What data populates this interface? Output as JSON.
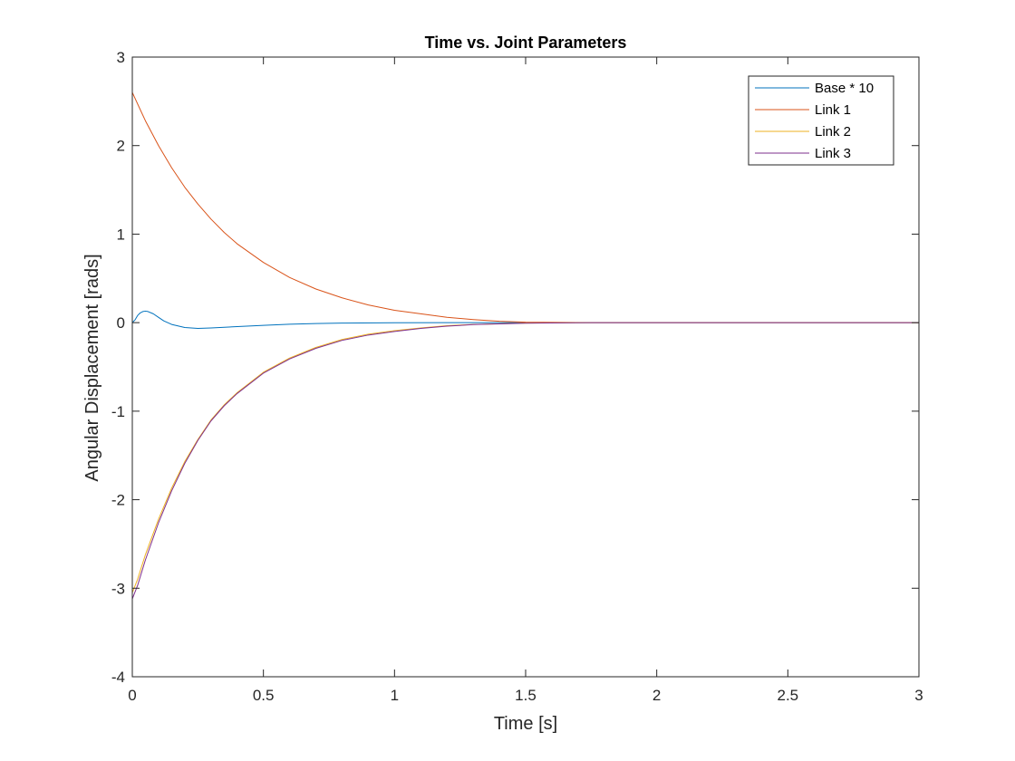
{
  "chart_data": {
    "type": "line",
    "title": "Time vs. Joint Parameters",
    "xlabel": "Time [s]",
    "ylabel": "Angular Displacement [rads]",
    "xlim": [
      0,
      3
    ],
    "ylim": [
      -4,
      3
    ],
    "xticks": [
      0,
      0.5,
      1,
      1.5,
      2,
      2.5,
      3
    ],
    "xtick_labels": [
      "0",
      "0.5",
      "1",
      "1.5",
      "2",
      "2.5",
      "3"
    ],
    "yticks": [
      -4,
      -3,
      -2,
      -1,
      0,
      1,
      2,
      3
    ],
    "ytick_labels": [
      "-4",
      "-3",
      "-2",
      "-1",
      "0",
      "1",
      "2",
      "3"
    ],
    "grid": false,
    "legend_position": "top-right",
    "series": [
      {
        "name": "Base * 10",
        "color": "#0072BD",
        "points": [
          [
            0,
            0
          ],
          [
            0.01,
            0.03
          ],
          [
            0.02,
            0.08
          ],
          [
            0.03,
            0.11
          ],
          [
            0.04,
            0.125
          ],
          [
            0.05,
            0.13
          ],
          [
            0.06,
            0.125
          ],
          [
            0.08,
            0.1
          ],
          [
            0.1,
            0.06
          ],
          [
            0.12,
            0.02
          ],
          [
            0.15,
            -0.02
          ],
          [
            0.2,
            -0.055
          ],
          [
            0.25,
            -0.065
          ],
          [
            0.3,
            -0.06
          ],
          [
            0.4,
            -0.045
          ],
          [
            0.5,
            -0.03
          ],
          [
            0.6,
            -0.018
          ],
          [
            0.7,
            -0.01
          ],
          [
            0.8,
            -0.005
          ],
          [
            1.0,
            -0.001
          ],
          [
            1.2,
            0
          ],
          [
            1.5,
            0
          ],
          [
            2.0,
            0
          ],
          [
            2.5,
            0
          ],
          [
            3.0,
            0
          ]
        ]
      },
      {
        "name": "Link 1",
        "color": "#D95319",
        "points": [
          [
            0,
            2.6
          ],
          [
            0.05,
            2.28
          ],
          [
            0.1,
            2.0
          ],
          [
            0.15,
            1.75
          ],
          [
            0.2,
            1.53
          ],
          [
            0.25,
            1.34
          ],
          [
            0.3,
            1.17
          ],
          [
            0.35,
            1.02
          ],
          [
            0.4,
            0.89
          ],
          [
            0.5,
            0.68
          ],
          [
            0.6,
            0.51
          ],
          [
            0.7,
            0.38
          ],
          [
            0.8,
            0.28
          ],
          [
            0.9,
            0.2
          ],
          [
            1.0,
            0.14
          ],
          [
            1.1,
            0.1
          ],
          [
            1.2,
            0.06
          ],
          [
            1.3,
            0.035
          ],
          [
            1.4,
            0.015
          ],
          [
            1.5,
            0.005
          ],
          [
            1.75,
            0
          ],
          [
            2.0,
            0
          ],
          [
            2.5,
            0
          ],
          [
            3.0,
            0
          ]
        ]
      },
      {
        "name": "Link 2",
        "color": "#EDB120",
        "points": [
          [
            0,
            -3.05
          ],
          [
            0.02,
            -2.9
          ],
          [
            0.05,
            -2.62
          ],
          [
            0.1,
            -2.22
          ],
          [
            0.15,
            -1.87
          ],
          [
            0.2,
            -1.57
          ],
          [
            0.25,
            -1.32
          ],
          [
            0.3,
            -1.1
          ],
          [
            0.35,
            -0.93
          ],
          [
            0.4,
            -0.79
          ],
          [
            0.5,
            -0.56
          ],
          [
            0.6,
            -0.4
          ],
          [
            0.7,
            -0.28
          ],
          [
            0.8,
            -0.19
          ],
          [
            0.9,
            -0.13
          ],
          [
            1.0,
            -0.09
          ],
          [
            1.1,
            -0.06
          ],
          [
            1.2,
            -0.035
          ],
          [
            1.3,
            -0.02
          ],
          [
            1.5,
            -0.005
          ],
          [
            1.75,
            0
          ],
          [
            2.0,
            0
          ],
          [
            2.5,
            0
          ],
          [
            3.0,
            0
          ]
        ]
      },
      {
        "name": "Link 3",
        "color": "#7E2F8E",
        "points": [
          [
            0,
            -3.12
          ],
          [
            0.02,
            -2.97
          ],
          [
            0.05,
            -2.68
          ],
          [
            0.1,
            -2.26
          ],
          [
            0.15,
            -1.9
          ],
          [
            0.2,
            -1.59
          ],
          [
            0.25,
            -1.33
          ],
          [
            0.3,
            -1.11
          ],
          [
            0.35,
            -0.94
          ],
          [
            0.4,
            -0.8
          ],
          [
            0.5,
            -0.57
          ],
          [
            0.6,
            -0.41
          ],
          [
            0.7,
            -0.29
          ],
          [
            0.8,
            -0.2
          ],
          [
            0.9,
            -0.14
          ],
          [
            1.0,
            -0.1
          ],
          [
            1.1,
            -0.065
          ],
          [
            1.2,
            -0.04
          ],
          [
            1.3,
            -0.022
          ],
          [
            1.5,
            -0.006
          ],
          [
            1.75,
            0
          ],
          [
            2.0,
            0
          ],
          [
            2.5,
            0
          ],
          [
            3.0,
            0
          ]
        ]
      }
    ]
  }
}
